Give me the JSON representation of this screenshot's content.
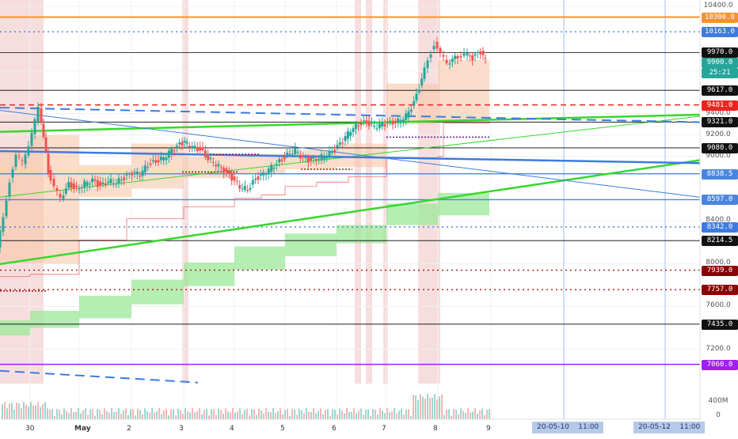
{
  "chart_data": {
    "type": "candlestick",
    "price_axis": {
      "ticks": [
        "10400.0",
        "9800.0",
        "9400.0",
        "9200.0",
        "9000.0",
        "8400.0",
        "8000.0",
        "7600.0",
        "7200.0"
      ],
      "ylim": [
        6880,
        10460
      ]
    },
    "price_levels": [
      {
        "label": "10300.0",
        "value": 10300,
        "color": "#f5922f",
        "style": "solid"
      },
      {
        "label": "10163.0",
        "value": 10163,
        "color": "#3d7be0",
        "style": "dotted"
      },
      {
        "label": "9970.0",
        "value": 9970,
        "color": "#000000",
        "style": "solid"
      },
      {
        "label": "9617.0",
        "value": 9617,
        "color": "#000000",
        "style": "solid"
      },
      {
        "label": "9481.0",
        "value": 9481,
        "color": "#e8261f",
        "style": "dashed"
      },
      {
        "label": "9321.0",
        "value": 9321,
        "color": "#000000",
        "style": "solid"
      },
      {
        "label": "9080.0",
        "value": 9080,
        "color": "#000000",
        "style": "solid"
      },
      {
        "label": "8838.5",
        "value": 8838.5,
        "color": "#4a86e0",
        "style": "solid"
      },
      {
        "label": "8597.0",
        "value": 8597,
        "color": "#4a86e0",
        "style": "solid"
      },
      {
        "label": "8342.0",
        "value": 8342,
        "color": "#3d7be0",
        "style": "dotted"
      },
      {
        "label": "8214.5",
        "value": 8214.5,
        "color": "#000000",
        "style": "solid"
      },
      {
        "label": "7939.0",
        "value": 7939,
        "color": "#a4161a",
        "style": "dotted"
      },
      {
        "label": "7757.0",
        "value": 7757,
        "color": "#a4161a",
        "style": "dotted"
      },
      {
        "label": "7435.0",
        "value": 7435,
        "color": "#000000",
        "style": "solid"
      },
      {
        "label": "7060.0",
        "value": 7060,
        "color": "#a020f0",
        "style": "solid"
      }
    ],
    "current_price": {
      "label": "9900.0",
      "value": 9900,
      "color": "#26a69a"
    },
    "countdown": "25:21",
    "volume_axis": {
      "ticks": [
        "400M",
        "0"
      ]
    },
    "time_axis": {
      "labels": [
        "30",
        "May",
        "2",
        "3",
        "4",
        "5",
        "6",
        "7",
        "8",
        "9"
      ],
      "cursor_labels": [
        "20-05-10    11:00",
        "20-05-12    11:00"
      ]
    }
  },
  "colors": {
    "up": "#26a69a",
    "down": "#ef5350",
    "trend_green": "#39d72d",
    "trend_blue": "#3d7be0",
    "band_green": "#9be89a",
    "band_orange": "#f7c7a8",
    "vshade": "#f2c8c8"
  }
}
